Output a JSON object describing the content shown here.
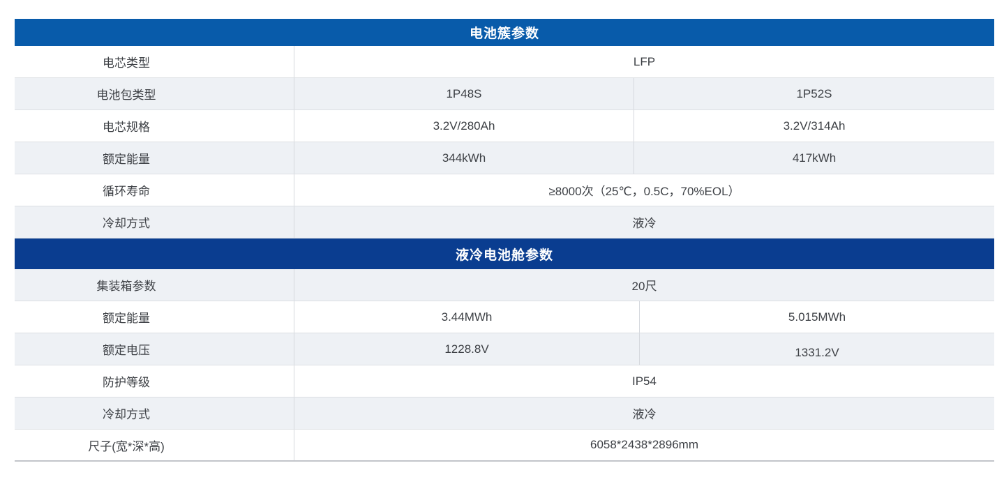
{
  "colors": {
    "section1_header_bg": "#085BAA",
    "section2_header_bg": "#0A3D90",
    "header_text": "#FFFFFF",
    "row_alt_bg": "#EEF1F5",
    "row_bg": "#FFFFFF",
    "border": "#D5D8DD",
    "text": "#3D4045"
  },
  "sections": [
    {
      "title": "电池簇参数",
      "rows": [
        {
          "label": "电芯类型",
          "values": [
            "LFP"
          ]
        },
        {
          "label": "电池包类型",
          "values": [
            "1P48S",
            "1P52S"
          ]
        },
        {
          "label": "电芯规格",
          "values": [
            "3.2V/280Ah",
            "3.2V/314Ah"
          ]
        },
        {
          "label": "额定能量",
          "values": [
            "344kWh",
            "417kWh"
          ]
        },
        {
          "label": "循环寿命",
          "values": [
            "≥8000次（25℃，0.5C，70%EOL）"
          ]
        },
        {
          "label": "冷却方式",
          "values": [
            "液冷"
          ]
        }
      ]
    },
    {
      "title": "液冷电池舱参数",
      "rows": [
        {
          "label": "集装箱参数",
          "values": [
            "20尺"
          ]
        },
        {
          "label": "额定能量",
          "values": [
            "3.44MWh",
            "5.015MWh"
          ]
        },
        {
          "label": "额定电压",
          "values": [
            "1228.8V",
            "1331.2V"
          ]
        },
        {
          "label": "防护等级",
          "values": [
            "IP54"
          ]
        },
        {
          "label": "冷却方式",
          "values": [
            "液冷"
          ]
        },
        {
          "label": "尺子(宽*深*高)",
          "values": [
            "6058*2438*2896mm"
          ]
        }
      ]
    }
  ]
}
